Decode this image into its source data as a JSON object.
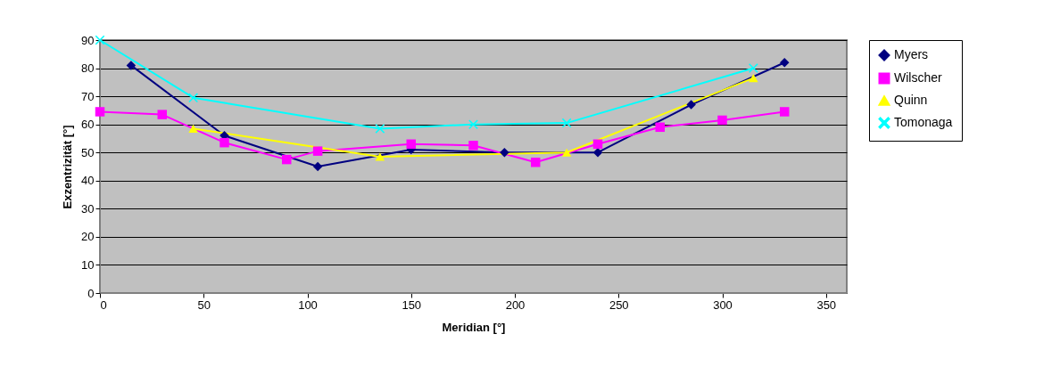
{
  "chart_data": {
    "type": "line",
    "xlabel": "Meridian [°]",
    "ylabel": "Exzentrizität [°]",
    "xlim": [
      0,
      360
    ],
    "xticks": [
      0,
      50,
      100,
      150,
      200,
      250,
      300,
      350
    ],
    "ylim": [
      0,
      90
    ],
    "yticks": [
      0,
      10,
      20,
      30,
      40,
      50,
      60,
      70,
      80,
      90
    ],
    "grid": "y",
    "legend": "right",
    "line_style": "solid",
    "series": [
      {
        "name": "Myers",
        "color": "#000080",
        "marker": "diamond",
        "x": [
          15,
          60,
          105,
          150,
          195,
          240,
          285,
          330
        ],
        "values": [
          81,
          56,
          45,
          51,
          50,
          50,
          67,
          82
        ]
      },
      {
        "name": "Wilscher",
        "color": "#ff00ff",
        "marker": "square",
        "x": [
          0,
          30,
          60,
          90,
          105,
          150,
          180,
          210,
          240,
          270,
          300,
          330
        ],
        "values": [
          64.5,
          63.5,
          53.5,
          47.5,
          50.5,
          53,
          52.5,
          46.5,
          53,
          59,
          61.5,
          64.5
        ]
      },
      {
        "name": "Quinn",
        "color": "#ffff00",
        "marker": "triangle",
        "x": [
          45,
          135,
          225,
          315
        ],
        "values": [
          58.5,
          48.5,
          50,
          76.5
        ]
      },
      {
        "name": "Tomonaga",
        "color": "#00ffff",
        "marker": "cross",
        "x": [
          0,
          45,
          135,
          180,
          225,
          315
        ],
        "values": [
          90,
          69.5,
          58.5,
          60,
          60.5,
          80
        ]
      }
    ]
  }
}
